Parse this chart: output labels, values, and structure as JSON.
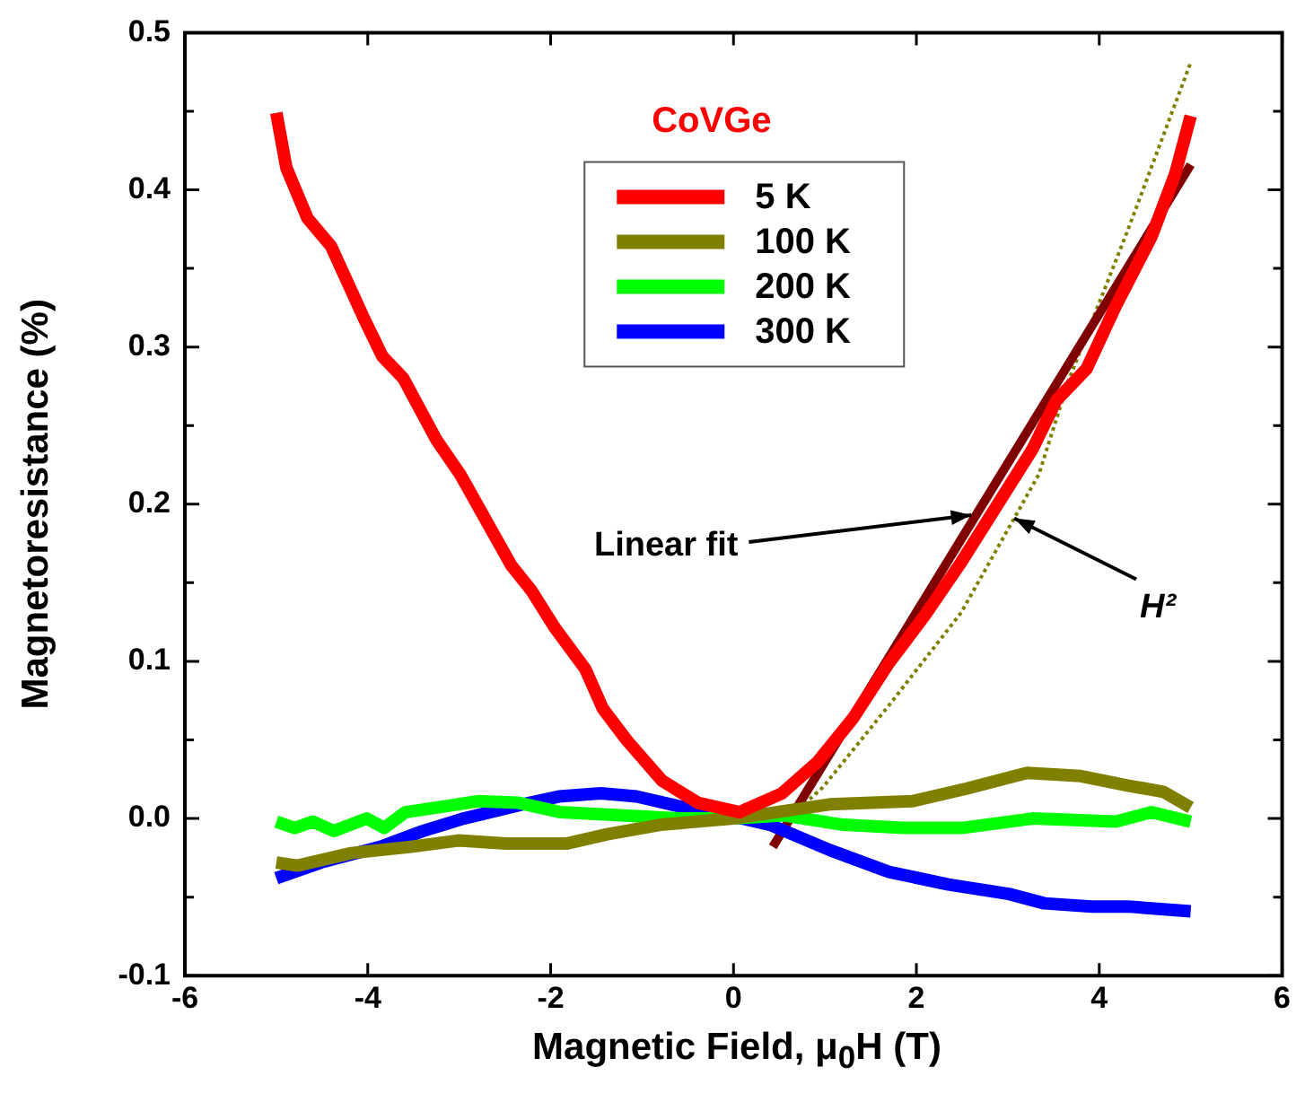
{
  "chart_data": {
    "type": "line",
    "title": "CoVGe",
    "xlabel": "Magnetic Field, μ$_{0}$H (T)",
    "ylabel": "Magnetoresistance (%)",
    "xlim": [
      -6,
      6
    ],
    "xticks": [
      -6,
      -4,
      -2,
      0,
      2,
      4,
      6
    ],
    "ylim": [
      -0.1,
      0.5
    ],
    "yticks": [
      {
        "value": -0.1,
        "label": "-0.1"
      },
      {
        "value": -0.05,
        "label": null
      },
      {
        "value": 0,
        "label": "0.0"
      },
      {
        "value": 0.05,
        "label": null
      },
      {
        "value": 0.1,
        "label": "0.1"
      },
      {
        "value": 0.15,
        "label": null
      },
      {
        "value": 0.2,
        "label": "0.2"
      },
      {
        "value": 0.25,
        "label": null
      },
      {
        "value": 0.3,
        "label": "0.3"
      },
      {
        "value": 0.35,
        "label": null
      },
      {
        "value": 0.4,
        "label": "0.4"
      },
      {
        "value": 0.45,
        "label": null
      },
      {
        "value": 0.5,
        "label": "0.5"
      }
    ],
    "grid": false,
    "legend": "top",
    "marker": "none",
    "series": [
      {
        "name": "5 K",
        "color": "#ff0000",
        "x": [
          -5.0,
          -4.89,
          -4.66,
          -4.4,
          -4.04,
          -3.84,
          -3.61,
          -3.25,
          -2.99,
          -2.43,
          -2.21,
          -1.95,
          -1.62,
          -1.43,
          -1.17,
          -0.78,
          -0.39,
          0.07,
          0.14,
          0.53,
          0.92,
          1.31,
          1.7,
          2.09,
          2.49,
          2.88,
          3.27,
          3.53,
          3.86,
          4.18,
          4.57,
          4.83,
          5.0
        ],
        "values": [
          0.449,
          0.414,
          0.382,
          0.364,
          0.318,
          0.294,
          0.28,
          0.241,
          0.219,
          0.161,
          0.145,
          0.121,
          0.095,
          0.07,
          0.05,
          0.024,
          0.01,
          0.004,
          0.006,
          0.016,
          0.036,
          0.064,
          0.099,
          0.129,
          0.163,
          0.199,
          0.235,
          0.266,
          0.286,
          0.326,
          0.37,
          0.41,
          0.447
        ]
      },
      {
        "name": "100 K",
        "color": "#808000",
        "x": [
          -5.0,
          -4.77,
          -4.18,
          -3.53,
          -3.01,
          -2.49,
          -1.83,
          -1.38,
          -0.8,
          0.0,
          1.05,
          1.96,
          2.55,
          3.21,
          3.8,
          4.31,
          4.7,
          5.0
        ],
        "values": [
          -0.028,
          -0.03,
          -0.022,
          -0.018,
          -0.014,
          -0.016,
          -0.016,
          -0.01,
          -0.004,
          0.0,
          0.009,
          0.011,
          0.019,
          0.029,
          0.027,
          0.021,
          0.017,
          0.007
        ]
      },
      {
        "name": "200 K",
        "color": "#00ff00",
        "x": [
          -5.0,
          -4.8,
          -4.6,
          -4.37,
          -4.01,
          -3.82,
          -3.59,
          -3.13,
          -2.8,
          -2.35,
          -1.89,
          -1.24,
          -0.59,
          0.0,
          0.55,
          1.2,
          1.86,
          2.5,
          3.27,
          4.18,
          4.57,
          5.0
        ],
        "values": [
          -0.002,
          -0.006,
          -0.002,
          -0.008,
          0.0,
          -0.006,
          0.004,
          0.008,
          0.011,
          0.01,
          0.004,
          0.002,
          0.0,
          0.0,
          0.002,
          -0.004,
          -0.006,
          -0.006,
          0.0,
          -0.002,
          0.004,
          -0.002
        ]
      },
      {
        "name": "300 K",
        "color": "#0000ff",
        "x": [
          -5.0,
          -4.51,
          -3.86,
          -3.4,
          -2.95,
          -2.23,
          -1.91,
          -1.45,
          -1.06,
          -0.61,
          0.1,
          0.4,
          1.05,
          1.7,
          2.35,
          3.01,
          3.4,
          3.92,
          4.31,
          5.0
        ],
        "values": [
          -0.038,
          -0.028,
          -0.018,
          -0.008,
          0.0,
          0.01,
          0.014,
          0.016,
          0.014,
          0.008,
          0.0,
          -0.004,
          -0.02,
          -0.034,
          -0.042,
          -0.048,
          -0.054,
          -0.056,
          -0.056,
          -0.059
        ]
      },
      {
        "type": "line",
        "color": "#800000",
        "x": [
          0.43,
          5.0
        ],
        "values": [
          -0.018,
          0.416
        ]
      },
      {
        "type": "line",
        "color": "#808000",
        "line_style": "dotted",
        "x": [
          0.6,
          0.98,
          1.7,
          2.49,
          3.34,
          3.66,
          4.31,
          5.0
        ],
        "values": [
          0.0,
          0.02,
          0.072,
          0.131,
          0.219,
          0.278,
          0.374,
          0.481
        ]
      }
    ],
    "annotations": [
      {
        "text": "Linear fit",
        "x": 2.6,
        "y": 0.193
      },
      {
        "text": "H²",
        "x": 3.07,
        "y": 0.191
      }
    ]
  }
}
